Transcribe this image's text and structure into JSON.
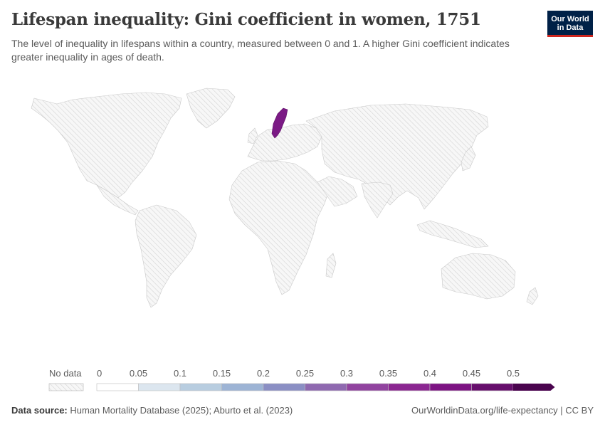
{
  "header": {
    "title": "Lifespan inequality: Gini coefficient in women, 1751",
    "subtitle": "The level of inequality in lifespans within a country, measured between 0 and 1. A higher Gini coefficient indicates greater inequality in ages of death."
  },
  "logo": {
    "line1": "Our World",
    "line2": "in Data"
  },
  "legend": {
    "no_data_label": "No data",
    "ticks": [
      "0",
      "0.05",
      "0.1",
      "0.15",
      "0.2",
      "0.25",
      "0.3",
      "0.35",
      "0.4",
      "0.45",
      "0.5"
    ],
    "colors": [
      "#ffffff",
      "#dce6ef",
      "#b8cde0",
      "#9db4d5",
      "#8b8fc4",
      "#8f69b0",
      "#91439f",
      "#8b2691",
      "#7d1383",
      "#660e6c",
      "#4a044e"
    ]
  },
  "map": {
    "highlighted_country": "Sweden",
    "highlight_color": "#7b1a85",
    "no_data_color": "#eeeeee"
  },
  "footer": {
    "source_label": "Data source:",
    "source_text": "Human Mortality Database (2025); Aburto et al. (2023)",
    "url": "OurWorldinData.org/life-expectancy | CC BY"
  }
}
